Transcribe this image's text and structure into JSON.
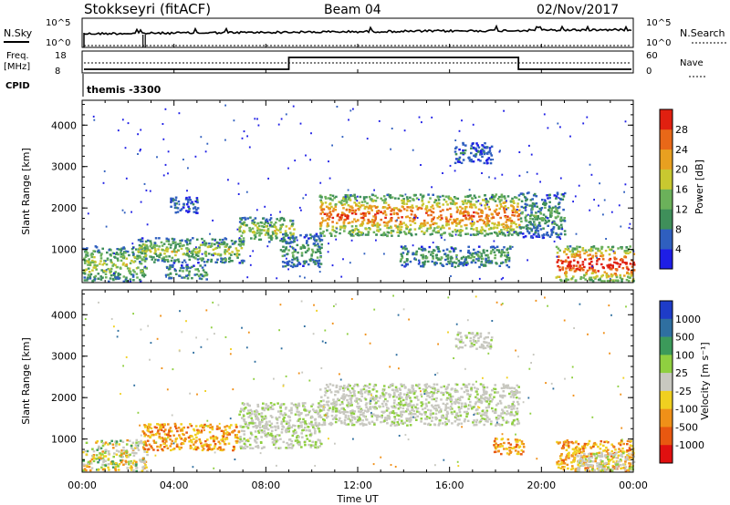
{
  "header": {
    "station": "Stokkseyri (fitACF)",
    "beam": "Beam 04",
    "date": "02/Nov/2017"
  },
  "status_panels": {
    "nsky_label": "N.Sky",
    "nsky_ticks": [
      "10^5",
      "10^0"
    ],
    "nsearch_label": "N.Search",
    "nsearch_ticks": [
      "10^5",
      "10^0"
    ],
    "freq_label_1": "Freq.",
    "freq_label_2": "[MHz]",
    "freq_ticks": [
      "18",
      "8"
    ],
    "nave_label": "Nave",
    "nave_ticks": [
      "60",
      "0"
    ],
    "cpid_label": "CPID",
    "cpid_text": "themis -3300"
  },
  "chart_data": [
    {
      "type": "heatmap",
      "name": "power",
      "ylabel": "Slant Range [km]",
      "y_ticks": [
        "1000",
        "2000",
        "3000",
        "4000"
      ],
      "y_tick_values": [
        1000,
        2000,
        3000,
        4000
      ],
      "ylim": [
        200,
        4600
      ],
      "xlim_hours": [
        0,
        24
      ],
      "colorbar": {
        "label": "Power [dB]",
        "ticks": [
          "4",
          "8",
          "12",
          "16",
          "20",
          "24",
          "28"
        ],
        "colors": [
          "#1e1ee6",
          "#2f5fbf",
          "#3f8f5a",
          "#6bb15a",
          "#c8c830",
          "#e8a020",
          "#e86818",
          "#e02010"
        ]
      },
      "regions": [
        {
          "t0": 0.0,
          "t1": 2.8,
          "r0": 250,
          "r1": 1100,
          "level": 3
        },
        {
          "t0": 2.4,
          "t1": 7.0,
          "r0": 700,
          "r1": 1300,
          "level": 3
        },
        {
          "t0": 3.6,
          "t1": 5.4,
          "r0": 300,
          "r1": 650,
          "level": 2
        },
        {
          "t0": 6.8,
          "t1": 9.2,
          "r0": 1200,
          "r1": 1800,
          "level": 3
        },
        {
          "t0": 8.6,
          "t1": 10.4,
          "r0": 600,
          "r1": 1400,
          "level": 2
        },
        {
          "t0": 10.3,
          "t1": 19.0,
          "r0": 1350,
          "r1": 2350,
          "level": 5
        },
        {
          "t0": 19.0,
          "t1": 21.0,
          "r0": 1300,
          "r1": 2400,
          "level": 2
        },
        {
          "t0": 13.8,
          "t1": 18.6,
          "r0": 600,
          "r1": 1100,
          "level": 2
        },
        {
          "t0": 20.6,
          "t1": 24.0,
          "r0": 250,
          "r1": 1100,
          "level": 6
        },
        {
          "t0": 3.8,
          "t1": 5.0,
          "r0": 1900,
          "r1": 2300,
          "level": 1
        },
        {
          "t0": 16.2,
          "t1": 17.8,
          "r0": 3100,
          "r1": 3600,
          "level": 1
        }
      ]
    },
    {
      "type": "heatmap",
      "name": "velocity",
      "ylabel": "Slant Range [km]",
      "y_ticks": [
        "1000",
        "2000",
        "3000",
        "4000"
      ],
      "y_tick_values": [
        1000,
        2000,
        3000,
        4000
      ],
      "ylim": [
        200,
        4600
      ],
      "xlim_hours": [
        0,
        24
      ],
      "x_ticks": [
        "00:00",
        "04:00",
        "08:00",
        "12:00",
        "16:00",
        "20:00",
        "00:00"
      ],
      "x_tick_hours": [
        0,
        4,
        8,
        12,
        16,
        20,
        24
      ],
      "xlabel": "Time UT",
      "colorbar": {
        "label": "Velocity [m s⁻¹]",
        "ticks": [
          "1000",
          "500",
          "100",
          "25",
          "-25",
          "-100",
          "-500",
          "-1000"
        ],
        "colors": [
          "#1e3cc8",
          "#2f6fa0",
          "#3c9a5a",
          "#8fcf40",
          "#c8c8c0",
          "#f0d020",
          "#f09018",
          "#e85810",
          "#e01010"
        ]
      },
      "regions": [
        {
          "t0": 0.0,
          "t1": 2.8,
          "r0": 250,
          "r1": 1000,
          "class": "mixed"
        },
        {
          "t0": 2.6,
          "t1": 6.8,
          "r0": 750,
          "r1": 1400,
          "class": "neg"
        },
        {
          "t0": 6.8,
          "t1": 10.4,
          "r0": 800,
          "r1": 1900,
          "class": "gs"
        },
        {
          "t0": 10.3,
          "t1": 19.0,
          "r0": 1350,
          "r1": 2350,
          "class": "gs"
        },
        {
          "t0": 16.2,
          "t1": 17.8,
          "r0": 3200,
          "r1": 3600,
          "class": "gs"
        },
        {
          "t0": 17.8,
          "t1": 19.2,
          "r0": 650,
          "r1": 1050,
          "class": "neg"
        },
        {
          "t0": 20.6,
          "t1": 24.0,
          "r0": 250,
          "r1": 1000,
          "class": "neg"
        },
        {
          "t0": 21.5,
          "t1": 24.0,
          "r0": 250,
          "r1": 700,
          "class": "gs"
        }
      ]
    }
  ]
}
